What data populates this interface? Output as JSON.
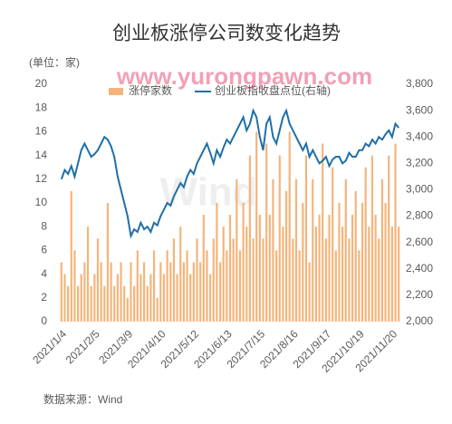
{
  "chart_data": {
    "type": "combo",
    "title": "创业板涨停公司数变化趋势",
    "y_unit_label": "(单位：家)",
    "source": "数据来源：Wind",
    "watermarks": [
      "www.yurongpawn.com",
      "Wind"
    ],
    "categories": [
      "2021/1/4",
      null,
      null,
      null,
      null,
      null,
      null,
      null,
      null,
      null,
      "2021/2/5",
      null,
      null,
      null,
      null,
      null,
      null,
      null,
      null,
      null,
      "2021/3/9",
      null,
      null,
      null,
      null,
      null,
      null,
      null,
      null,
      null,
      "2021/4/10",
      null,
      null,
      null,
      null,
      null,
      null,
      null,
      null,
      null,
      "2021/5/12",
      null,
      null,
      null,
      null,
      null,
      null,
      null,
      null,
      null,
      "2021/6/13",
      null,
      null,
      null,
      null,
      null,
      null,
      null,
      null,
      null,
      "2021/7/15",
      null,
      null,
      null,
      null,
      null,
      null,
      null,
      null,
      null,
      "2021/8/16",
      null,
      null,
      null,
      null,
      null,
      null,
      null,
      null,
      null,
      "2021/9/17",
      null,
      null,
      null,
      null,
      null,
      null,
      null,
      null,
      null,
      "2021/10/19",
      null,
      null,
      null,
      null,
      null,
      null,
      null,
      null,
      null,
      "2021/11/20",
      null,
      null
    ],
    "series": [
      {
        "name": "涨停家数",
        "type": "bar",
        "color": "#f5b47a",
        "values": [
          5,
          4,
          3,
          11,
          6,
          3,
          4,
          5,
          8,
          3,
          4,
          7,
          5,
          3,
          10,
          5,
          3,
          4,
          5,
          3,
          2,
          5,
          3,
          6,
          4,
          5,
          3,
          4,
          6,
          2,
          5,
          4,
          6,
          5,
          7,
          4,
          8,
          5,
          6,
          4,
          5,
          7,
          5,
          9,
          6,
          4,
          7,
          10,
          5,
          8,
          6,
          9,
          7,
          12,
          6,
          10,
          8,
          14,
          7,
          16,
          9,
          7,
          15,
          9,
          12,
          6,
          14,
          8,
          11,
          16,
          7,
          12,
          6,
          10,
          14,
          5,
          12,
          8,
          9,
          15,
          7,
          9,
          13,
          6,
          10,
          8,
          12,
          7,
          9,
          11,
          6,
          10,
          13,
          8,
          14,
          9,
          7,
          12,
          10,
          14,
          8,
          15,
          8
        ]
      },
      {
        "name": "创业板指收盘点位(右轴)",
        "type": "line",
        "axis": "y2",
        "color": "#1f6fa8",
        "values": [
          3080,
          3150,
          3120,
          3180,
          3100,
          3200,
          3300,
          3350,
          3300,
          3250,
          3270,
          3300,
          3350,
          3400,
          3380,
          3330,
          3250,
          3100,
          3000,
          2900,
          2800,
          2650,
          2700,
          2680,
          2750,
          2700,
          2720,
          2680,
          2750,
          2730,
          2800,
          2850,
          2900,
          2880,
          2950,
          3000,
          3050,
          3020,
          3100,
          3150,
          3120,
          3200,
          3250,
          3300,
          3350,
          3280,
          3200,
          3300,
          3250,
          3320,
          3380,
          3350,
          3400,
          3450,
          3500,
          3550,
          3450,
          3500,
          3600,
          3550,
          3400,
          3300,
          3500,
          3550,
          3400,
          3350,
          3450,
          3550,
          3600,
          3500,
          3450,
          3400,
          3350,
          3300,
          3350,
          3250,
          3300,
          3250,
          3200,
          3220,
          3250,
          3180,
          3230,
          3250,
          3250,
          3200,
          3220,
          3280,
          3250,
          3250,
          3300,
          3300,
          3350,
          3330,
          3380,
          3350,
          3400,
          3380,
          3420,
          3450,
          3400,
          3500,
          3470
        ]
      }
    ],
    "ylim": [
      0,
      20
    ],
    "yticks": [
      0,
      2,
      4,
      6,
      8,
      10,
      12,
      14,
      16,
      18,
      20
    ],
    "y2lim": [
      2000,
      3800
    ],
    "y2ticks": [
      {
        "value": 2000,
        "label": "2,000"
      },
      {
        "value": 2200,
        "label": "2,200"
      },
      {
        "value": 2400,
        "label": "2,400"
      },
      {
        "value": 2600,
        "label": "2,600"
      },
      {
        "value": 2800,
        "label": "2,800"
      },
      {
        "value": 3000,
        "label": "3,000"
      },
      {
        "value": 3200,
        "label": "3,200"
      },
      {
        "value": 3400,
        "label": "3,400"
      },
      {
        "value": 3600,
        "label": "3,600"
      },
      {
        "value": 3800,
        "label": "3,800"
      }
    ],
    "legend": "top"
  }
}
